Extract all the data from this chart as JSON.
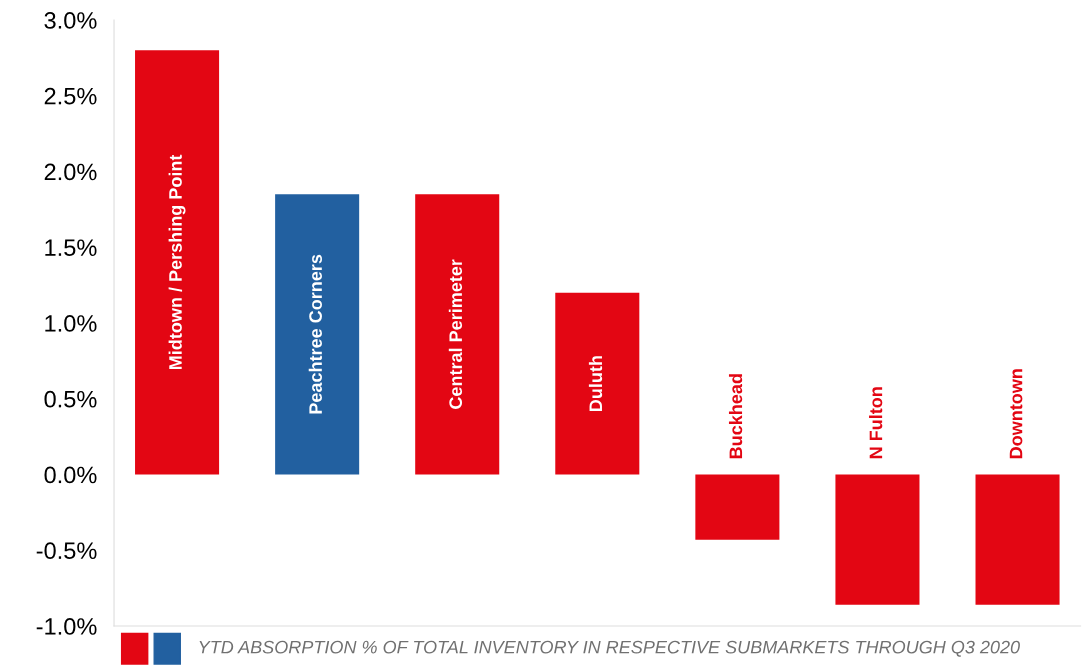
{
  "chart_data": {
    "type": "bar",
    "categories": [
      "Midtown / Pershing Point",
      "Peachtree Corners",
      "Central Perimeter",
      "Duluth",
      "Buckhead",
      "N Fulton",
      "Downtown"
    ],
    "values": [
      2.8,
      1.85,
      1.85,
      1.2,
      -0.43,
      -0.86,
      -0.86
    ],
    "colors": [
      "#e30613",
      "#2260a0",
      "#e30613",
      "#e30613",
      "#e30613",
      "#e30613",
      "#e30613"
    ],
    "ylim": [
      -1.0,
      3.0
    ],
    "yticks": [
      {
        "value": -1.0,
        "label": "-1.0%"
      },
      {
        "value": -0.5,
        "label": "-0.5%"
      },
      {
        "value": 0.0,
        "label": "0.0%"
      },
      {
        "value": 0.5,
        "label": "0.5%"
      },
      {
        "value": 1.0,
        "label": "1.0%"
      },
      {
        "value": 1.5,
        "label": "1.5%"
      },
      {
        "value": 2.0,
        "label": "2.0%"
      },
      {
        "value": 2.5,
        "label": "2.5%"
      },
      {
        "value": 3.0,
        "label": "3.0%"
      }
    ],
    "annotations": [
      "YTD ABSORPTION % OF TOTAL INVENTORY IN RESPECTIVE SUBMARKETS THROUGH Q3 2020"
    ],
    "grid": false,
    "legend": false
  }
}
